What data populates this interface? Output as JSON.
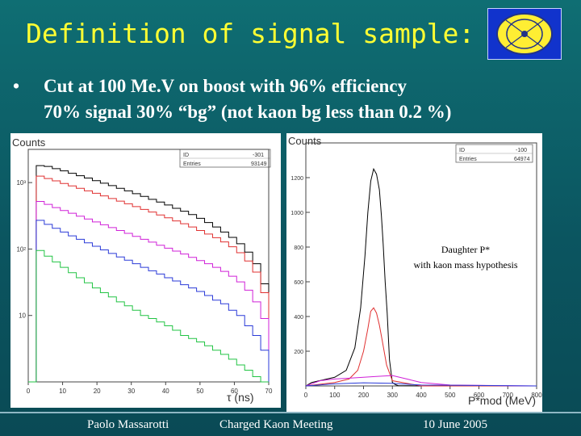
{
  "slide": {
    "title": "Definition of signal sample:",
    "bullet_line1": "Cut at 100 Me.V on boost   with 96% efficiency",
    "bullet_line2": "70% signal 30% “bg” (not kaon bg less than 0.2 %)"
  },
  "footer": {
    "author": "Paolo Massarotti",
    "meeting": "Charged Kaon Meeting",
    "date": "10 June 2005"
  },
  "logo": {
    "icon": "kloe-logo",
    "color": "#1133cc"
  },
  "chart_data": [
    {
      "type": "line",
      "title": "",
      "ylabel": "Counts",
      "xlabel": "τ (ns)",
      "yscale": "log",
      "stats": {
        "id_label": "ID",
        "id_value": "-301",
        "entries_label": "Entries",
        "entries_value": "93149"
      },
      "x_ticks": [
        "0",
        "10",
        "20",
        "30",
        "40",
        "50",
        "60",
        "70"
      ],
      "y_ticks": [
        "10",
        "10²",
        "10³"
      ],
      "xlim": [
        0,
        70
      ],
      "series": [
        {
          "color": "#000000",
          "values": [
            1,
            1800,
            1750,
            1620,
            1500,
            1380,
            1270,
            1170,
            1070,
            980,
            900,
            820,
            750,
            680,
            620,
            560,
            510,
            460,
            410,
            370,
            330,
            290,
            250,
            215,
            180,
            150,
            120,
            90,
            60,
            30,
            1
          ]
        },
        {
          "color": "#e03030",
          "values": [
            1,
            1250,
            1150,
            1060,
            970,
            890,
            820,
            750,
            690,
            630,
            575,
            525,
            480,
            435,
            395,
            360,
            325,
            295,
            265,
            240,
            215,
            190,
            168,
            148,
            128,
            108,
            88,
            66,
            45,
            22,
            1
          ]
        },
        {
          "color": "#d020d8",
          "values": [
            1,
            520,
            470,
            420,
            380,
            345,
            312,
            283,
            256,
            232,
            210,
            190,
            172,
            155,
            140,
            127,
            114,
            103,
            93,
            84,
            75,
            67,
            60,
            53,
            46,
            39,
            32,
            24,
            16,
            9,
            1
          ]
        },
        {
          "color": "#2a3ad8",
          "values": [
            1,
            270,
            235,
            205,
            180,
            158,
            140,
            124,
            110,
            97,
            86,
            76,
            68,
            60,
            53,
            47,
            42,
            37,
            33,
            29,
            26,
            23,
            20,
            17,
            15,
            12,
            10,
            7,
            5,
            3,
            1
          ]
        },
        {
          "color": "#22c444",
          "values": [
            1,
            95,
            78,
            64,
            53,
            44,
            37,
            31,
            26,
            22,
            19,
            16,
            14,
            12,
            10,
            9,
            8,
            7,
            6,
            5,
            4.5,
            4,
            3.5,
            3,
            2.6,
            2.2,
            1.8,
            1.5,
            1.2,
            1,
            1
          ]
        }
      ]
    },
    {
      "type": "line",
      "title": "",
      "ylabel": "Counts",
      "xlabel": "P*mod (MeV)",
      "yscale": "linear",
      "stats": {
        "id_label": "ID",
        "id_value": "-100",
        "entries_label": "Entries",
        "entries_value": "64974"
      },
      "x_ticks": [
        "0",
        "100",
        "200",
        "300",
        "400",
        "500",
        "600",
        "700",
        "800"
      ],
      "y_ticks": [
        "200",
        "400",
        "600",
        "800",
        "1000",
        "1200"
      ],
      "xlim": [
        0,
        800
      ],
      "ylim": [
        0,
        1400
      ],
      "annotation_line1": "Daughter P*",
      "annotation_line2": "with kaon mass hypothesis",
      "series": [
        {
          "color": "#000000",
          "x": [
            0,
            20,
            60,
            100,
            140,
            170,
            190,
            205,
            215,
            225,
            235,
            245,
            255,
            262,
            268,
            275,
            282,
            290,
            300,
            310,
            320,
            400,
            800
          ],
          "values": [
            0,
            20,
            35,
            50,
            90,
            220,
            450,
            750,
            1000,
            1180,
            1250,
            1220,
            1130,
            980,
            820,
            600,
            420,
            150,
            20,
            8,
            2,
            0,
            0
          ]
        },
        {
          "color": "#e03030",
          "x": [
            0,
            100,
            150,
            180,
            200,
            215,
            225,
            235,
            245,
            255,
            265,
            280,
            300,
            400,
            800
          ],
          "values": [
            0,
            20,
            40,
            90,
            200,
            330,
            430,
            450,
            420,
            350,
            260,
            120,
            30,
            0,
            0
          ]
        },
        {
          "color": "#d020d8",
          "x": [
            0,
            50,
            100,
            150,
            200,
            250,
            300,
            350,
            400,
            500,
            800
          ],
          "values": [
            0,
            30,
            40,
            45,
            50,
            55,
            60,
            40,
            20,
            5,
            0
          ]
        },
        {
          "color": "#2a3ad8",
          "x": [
            0,
            100,
            200,
            300,
            400,
            800
          ],
          "values": [
            0,
            12,
            18,
            15,
            5,
            0
          ]
        }
      ]
    }
  ]
}
